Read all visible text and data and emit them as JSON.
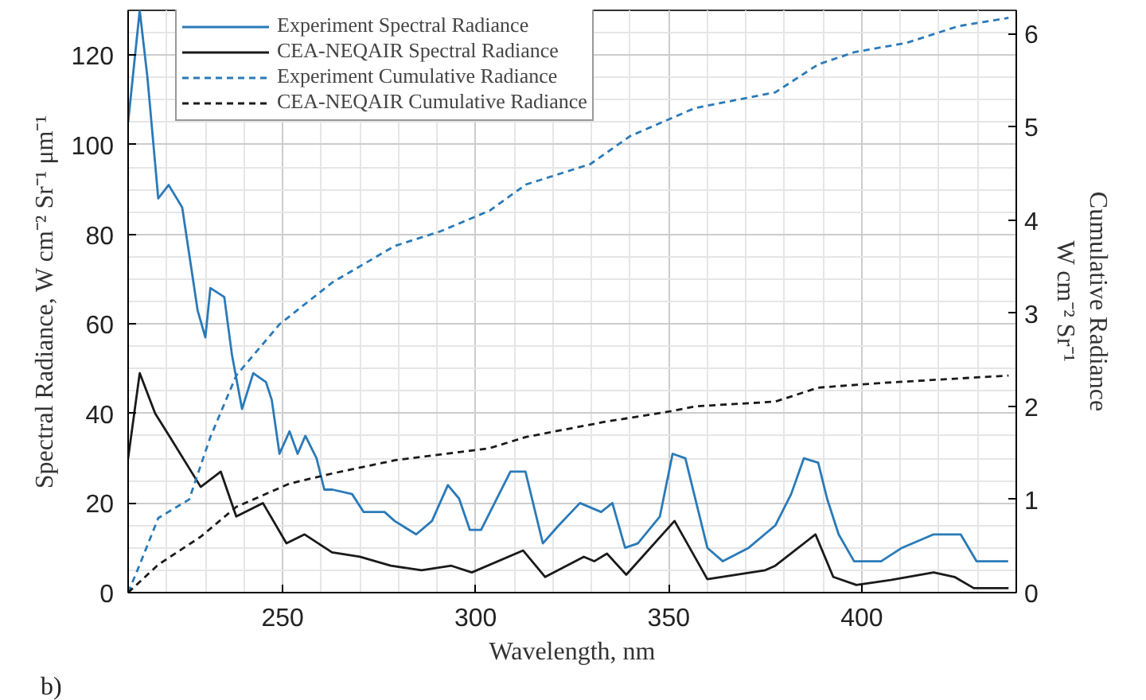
{
  "chart_data": {
    "type": "line",
    "xlabel": "Wavelength, nm",
    "ylabel": "Spectral Radiance, W cm⁻² Sr⁻¹ μm⁻¹",
    "y2label": "Cumulative Radiance\nW cm⁻² Sr⁻¹",
    "annotations": [
      "b)"
    ],
    "xlim": [
      210,
      440
    ],
    "xticks": [
      250,
      300,
      350,
      400
    ],
    "ylim": [
      0,
      130
    ],
    "yticks": [
      0,
      20,
      40,
      60,
      80,
      100,
      120
    ],
    "y2lim": [
      0,
      6.25
    ],
    "y2ticks": [
      0,
      1,
      2,
      3,
      4,
      5,
      6
    ],
    "grid": true,
    "legend": "top left",
    "series": [
      {
        "name": "Experiment Spectral Radiance",
        "color": "#2a7ab8",
        "line_style": "solid",
        "x": [
          210,
          213,
          215,
          217.8,
          220.5,
          224,
          228,
          230,
          231.3,
          234.9,
          236.9,
          239.5,
          242.4,
          245.7,
          247.2,
          249.2,
          251.8,
          253.9,
          255.9,
          258.8,
          260.8,
          262.9,
          268,
          271,
          276.4,
          279,
          284.6,
          288.7,
          292.8,
          295.7,
          298.5,
          301.4,
          309,
          312.9,
          317.4,
          321.5,
          327,
          332.5,
          335.4,
          338.7,
          342,
          347.7,
          351,
          354.3,
          360,
          364,
          370.7,
          377.6,
          381.7,
          385,
          388.7,
          391,
          394,
          398,
          405,
          410.4,
          418.6,
          425.6,
          429.7,
          437.9
        ],
        "values": [
          105,
          130,
          115,
          88,
          91,
          86,
          63,
          57,
          68,
          66,
          53,
          41,
          49,
          47,
          43,
          31,
          36,
          31,
          35,
          30,
          23,
          23,
          22,
          18,
          18,
          16,
          13,
          16,
          24,
          21,
          14,
          14,
          27,
          27,
          11,
          15,
          20,
          18,
          20,
          10,
          11,
          17,
          31,
          30,
          10,
          7,
          10,
          15,
          22,
          30,
          29,
          21,
          13,
          7,
          7,
          10,
          13,
          13,
          7,
          7
        ]
      },
      {
        "name": "CEA-NEQAIR Spectral Radiance",
        "color": "#1a1a1a",
        "line_style": "solid",
        "x": [
          210,
          213,
          217,
          221,
          228.8,
          234,
          238,
          244.9,
          251,
          255.7,
          262.8,
          270,
          278,
          286,
          293.7,
          299,
          312.3,
          318,
          328,
          330.7,
          334,
          339,
          351.5,
          360,
          375,
          377.6,
          388,
          392.6,
          398.6,
          407.5,
          418.6,
          424,
          429,
          438
        ],
        "values": [
          30,
          49,
          40,
          34.5,
          23.6,
          27,
          17,
          20,
          11,
          13,
          9,
          8,
          6,
          5,
          6,
          4.5,
          9.4,
          3.5,
          8,
          7,
          8.7,
          4,
          16,
          3,
          5,
          6,
          13,
          3.5,
          1.7,
          2.8,
          4.5,
          3.5,
          1,
          1
        ]
      },
      {
        "name": "Experiment Cumulative Radiance",
        "color": "#2a7ab8",
        "line_style": "dashed",
        "axis": "y2",
        "x": [
          210,
          213,
          217.8,
          225.8,
          231.3,
          238,
          249.2,
          262.9,
          279,
          291,
          303.6,
          313,
          329.7,
          340,
          356.7,
          377.6,
          388.7,
          398,
          411.5,
          425,
          438
        ],
        "values": [
          0,
          0.3,
          0.8,
          1.0,
          1.67,
          2.33,
          2.88,
          3.33,
          3.72,
          3.88,
          4.1,
          4.38,
          4.6,
          4.9,
          5.2,
          5.37,
          5.67,
          5.8,
          5.9,
          6.08,
          6.17
        ]
      },
      {
        "name": "CEA-NEQAIR Cumulative Radiance",
        "color": "#1a1a1a",
        "line_style": "dashed",
        "axis": "y2",
        "x": [
          210,
          217.8,
          228.8,
          238,
          251.8,
          263,
          279,
          303.6,
          313,
          333,
          351,
          357,
          377.6,
          388.7,
          405,
          438
        ],
        "values": [
          0,
          0.3,
          0.6,
          0.92,
          1.17,
          1.28,
          1.42,
          1.55,
          1.67,
          1.83,
          1.95,
          2.0,
          2.05,
          2.2,
          2.25,
          2.33
        ]
      }
    ]
  }
}
